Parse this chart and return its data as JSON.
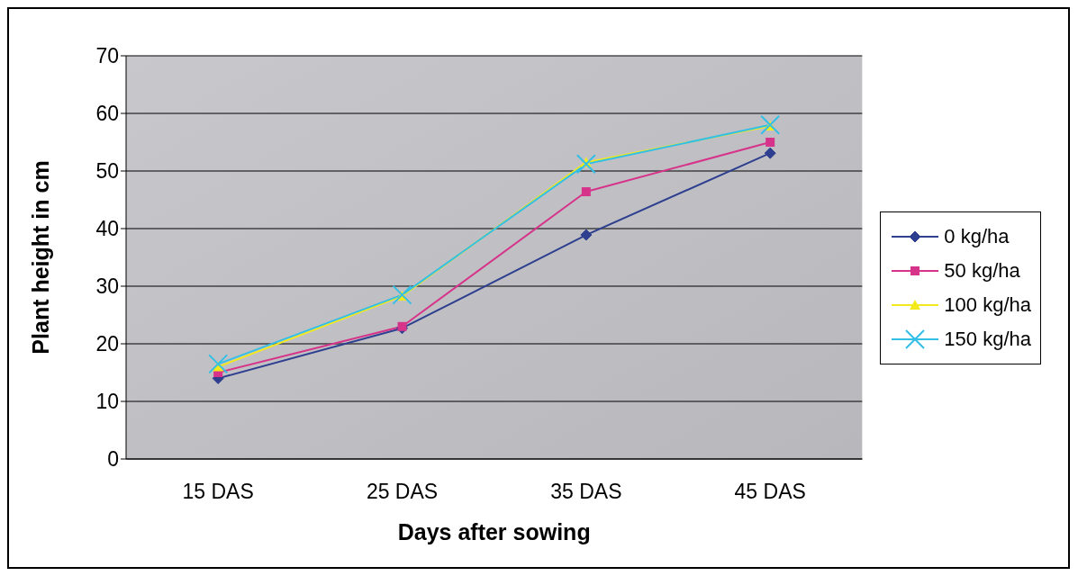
{
  "chart_data": {
    "type": "line",
    "xlabel": "Days after sowing",
    "ylabel": "Plant height in cm",
    "categories": [
      "15 DAS",
      "25 DAS",
      "35 DAS",
      "45 DAS"
    ],
    "series": [
      {
        "name": "0 kg/ha",
        "color": "#2e3f8f",
        "marker": "diamond",
        "values": [
          14,
          22.7,
          38.9,
          53.1
        ]
      },
      {
        "name": "50 kg/ha",
        "color": "#d6338a",
        "marker": "square",
        "values": [
          15,
          23,
          46.4,
          55
        ]
      },
      {
        "name": "100 kg/ha",
        "color": "#f2ea1a",
        "marker": "triangle",
        "values": [
          16,
          28.3,
          51.5,
          57.8
        ]
      },
      {
        "name": "150 kg/ha",
        "color": "#33bfe6",
        "marker": "cross",
        "values": [
          16.5,
          28.5,
          51.2,
          58
        ]
      }
    ],
    "ylim": [
      0,
      70
    ],
    "yticks": [
      0,
      10,
      20,
      30,
      40,
      50,
      60,
      70
    ],
    "grid": "y",
    "legend": "right",
    "line_style": "solid"
  }
}
